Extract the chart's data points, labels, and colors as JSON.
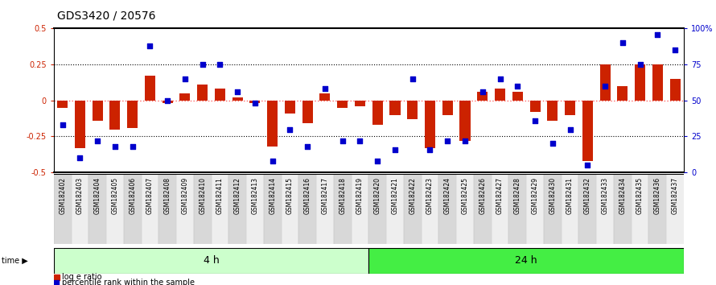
{
  "title": "GDS3420 / 20576",
  "categories": [
    "GSM182402",
    "GSM182403",
    "GSM182404",
    "GSM182405",
    "GSM182406",
    "GSM182407",
    "GSM182408",
    "GSM182409",
    "GSM182410",
    "GSM182411",
    "GSM182412",
    "GSM182413",
    "GSM182414",
    "GSM182415",
    "GSM182416",
    "GSM182417",
    "GSM182418",
    "GSM182419",
    "GSM182420",
    "GSM182421",
    "GSM182422",
    "GSM182423",
    "GSM182424",
    "GSM182425",
    "GSM182426",
    "GSM182427",
    "GSM182428",
    "GSM182429",
    "GSM182430",
    "GSM182431",
    "GSM182432",
    "GSM182433",
    "GSM182434",
    "GSM182435",
    "GSM182436",
    "GSM182437"
  ],
  "log_ratio": [
    -0.05,
    -0.33,
    -0.14,
    -0.2,
    -0.19,
    0.17,
    -0.02,
    0.05,
    0.11,
    0.08,
    0.02,
    -0.02,
    -0.32,
    -0.09,
    -0.16,
    0.05,
    -0.05,
    -0.04,
    -0.17,
    -0.1,
    -0.13,
    -0.33,
    -0.1,
    -0.28,
    0.06,
    0.08,
    0.06,
    -0.08,
    -0.14,
    -0.1,
    -0.42,
    0.25,
    0.1,
    0.25,
    0.25,
    0.15
  ],
  "percentile": [
    33,
    10,
    22,
    18,
    18,
    88,
    50,
    65,
    75,
    75,
    56,
    48,
    8,
    30,
    18,
    58,
    22,
    22,
    8,
    16,
    65,
    16,
    22,
    22,
    56,
    65,
    60,
    36,
    20,
    30,
    5,
    60,
    90,
    75,
    96,
    85
  ],
  "group1_count": 18,
  "group1_label": "4 h",
  "group2_label": "24 h",
  "group1_color": "#ccffcc",
  "group2_color": "#44ee44",
  "stripe_color_odd": "#d8d8d8",
  "stripe_color_even": "#eeeeee",
  "bar_color": "#cc2200",
  "dot_color": "#0000cc",
  "zero_line_color": "#ff6666",
  "title_fontsize": 10,
  "tick_label_fontsize": 5.5,
  "ylim_left": [
    -0.5,
    0.5
  ],
  "ylim_right": [
    0,
    100
  ],
  "yticks_left": [
    -0.5,
    -0.25,
    0,
    0.25,
    0.5
  ],
  "yticks_right": [
    0,
    25,
    50,
    75,
    100
  ]
}
